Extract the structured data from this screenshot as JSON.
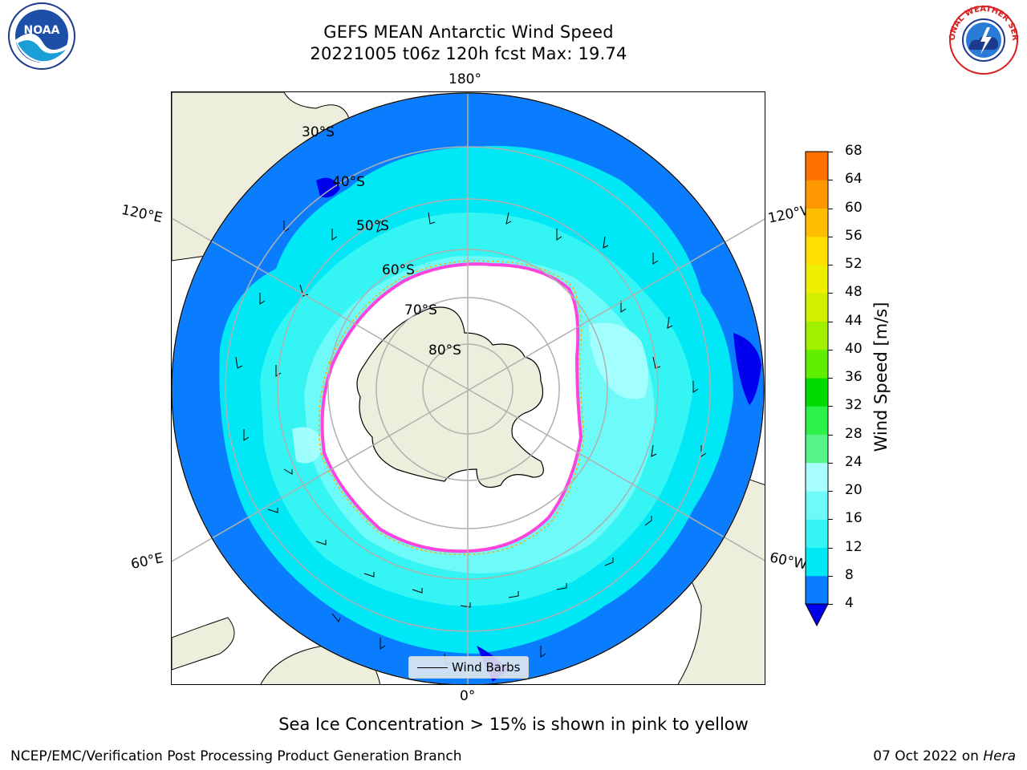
{
  "title": {
    "line1": "GEFS MEAN Antarctic Wind Speed",
    "line2": "20221005 t06z 120h fcst   Max: 19.74"
  },
  "map": {
    "projection": "south-polar-stereographic",
    "longitude_labels": {
      "top": "180°",
      "left_upper": "120°E",
      "right_upper": "120°W",
      "left_lower": "60°E",
      "right_lower": "60°W",
      "bottom": "0°"
    },
    "latitude_labels": [
      "30°S",
      "40°S",
      "50°S",
      "60°S",
      "70°S",
      "80°S"
    ],
    "legend_label": "Wind Barbs",
    "ice_note": "Sea Ice Concentration > 15% is shown in pink to yellow"
  },
  "colorbar": {
    "label": "Wind Speed [m/s]",
    "ticks": [
      "4",
      "8",
      "12",
      "16",
      "20",
      "24",
      "28",
      "32",
      "36",
      "40",
      "44",
      "48",
      "52",
      "56",
      "60",
      "64",
      "68"
    ],
    "colors": [
      "#0a7dff",
      "#00e7f5",
      "#34f4f4",
      "#6ffafa",
      "#a8fefe",
      "#55f58a",
      "#2ef04a",
      "#00dc00",
      "#60ee00",
      "#a0f000",
      "#d0f000",
      "#eeee00",
      "#ffe000",
      "#ffbf00",
      "#ff9700",
      "#ff7000",
      "#ff4a00",
      "#ff2000",
      "#ff0000"
    ],
    "under_color": "#0000ee"
  },
  "footer": {
    "left": "NCEP/EMC/Verification Post Processing Product Generation Branch",
    "date": "07 Oct 2022 on",
    "host": "Hera"
  },
  "logos": {
    "left": "NOAA",
    "right": "NATIONAL WEATHER SERVICE"
  },
  "colors": {
    "land": "#eeeedc",
    "ocean_low": "#0a7dff",
    "ocean_mid": "#00e7f5",
    "ocean_high": "#6ffafa",
    "ice_edge": "#ff44dd",
    "ice_fill": "#ffffff"
  }
}
